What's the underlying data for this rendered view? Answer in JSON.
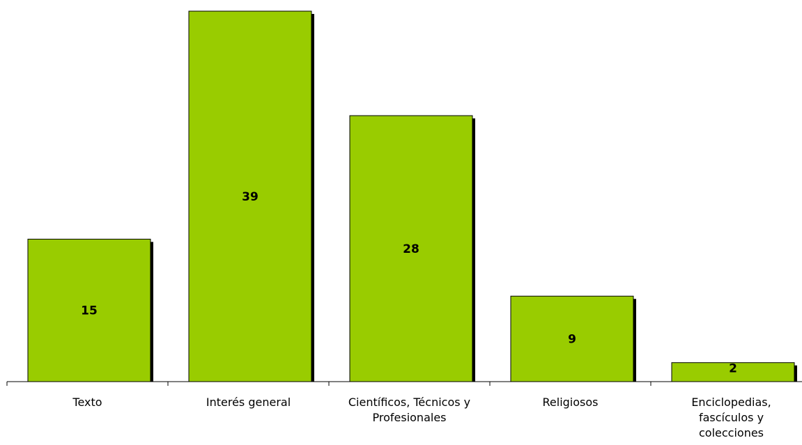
{
  "chart_data": {
    "type": "bar",
    "categories": [
      [
        "Texto"
      ],
      [
        "Interés general"
      ],
      [
        "Científicos, Técnicos y",
        "Profesionales"
      ],
      [
        "Religiosos"
      ],
      [
        "Enciclopedias,",
        "fascículos y",
        "colecciones"
      ]
    ],
    "values": [
      15,
      39,
      28,
      9,
      2
    ],
    "data_labels": [
      "15",
      "39",
      "28",
      "9",
      "2"
    ],
    "title": "",
    "xlabel": "",
    "ylabel": "",
    "ylim": [
      0,
      39
    ],
    "grid": false,
    "legend": "none",
    "colors": {
      "bar": "#99cc00",
      "shadow": "#000000",
      "text": "#000000"
    }
  }
}
